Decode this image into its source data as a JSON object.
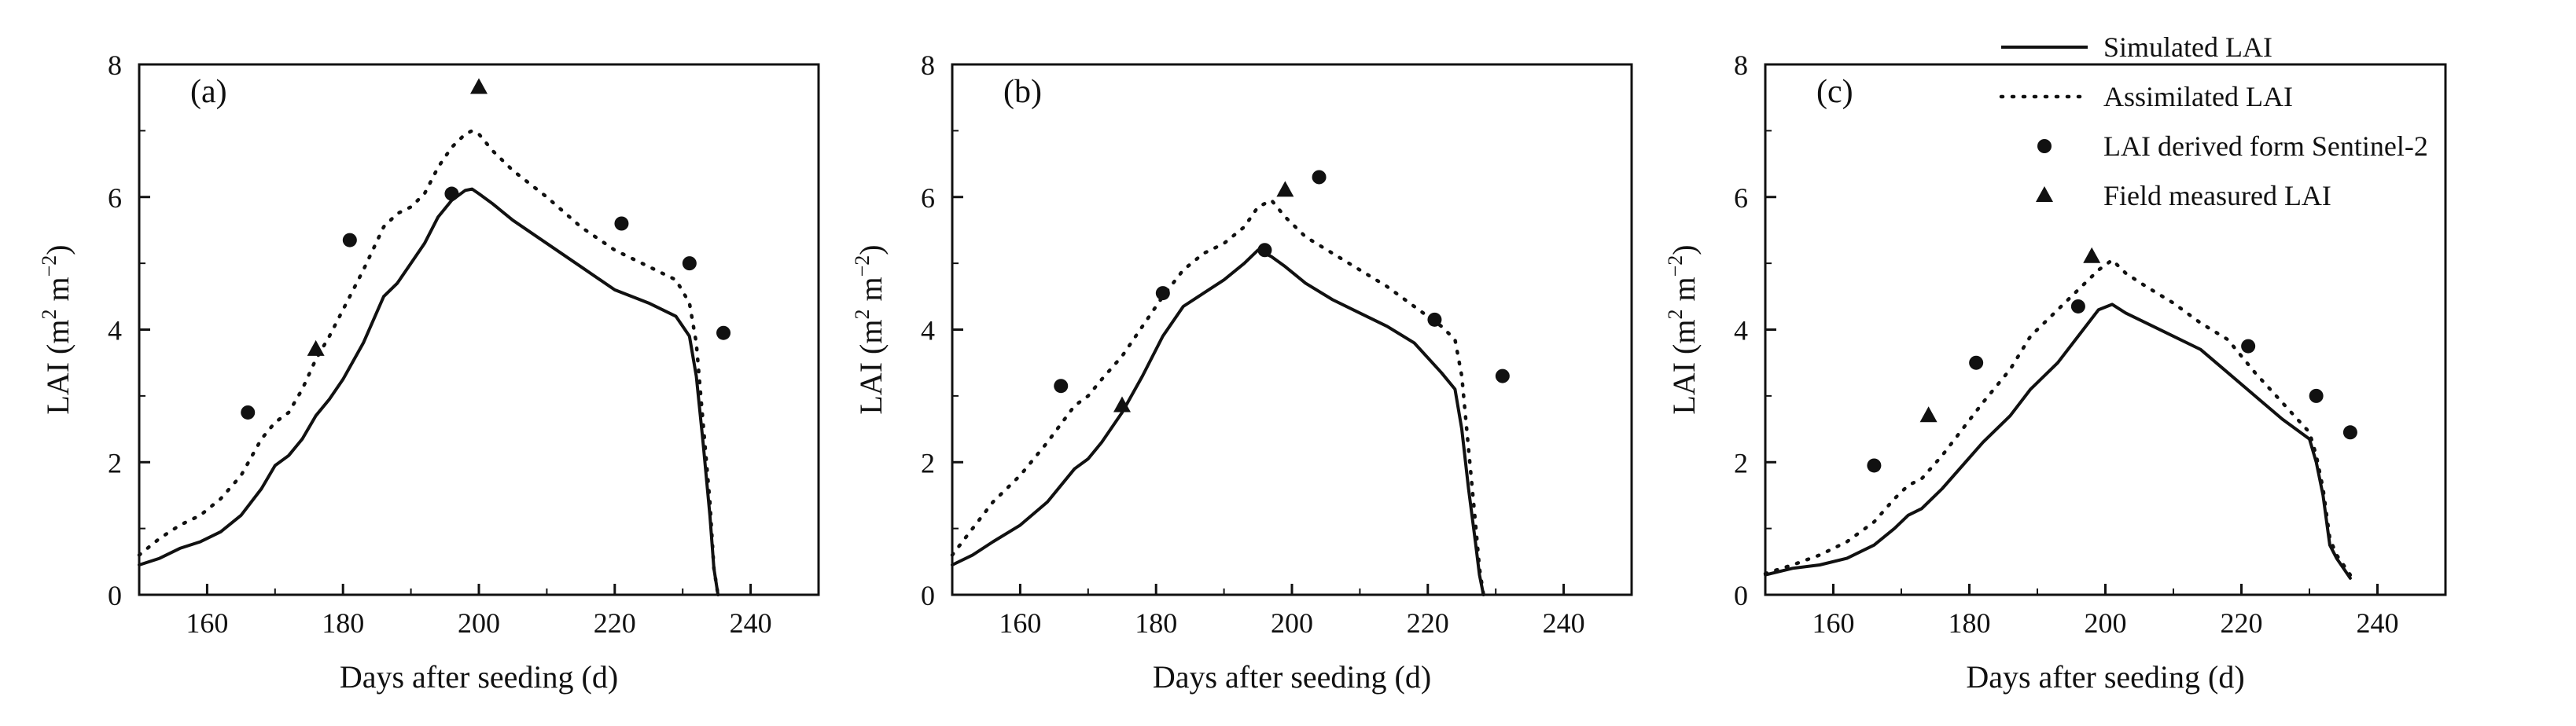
{
  "chart_data": [
    {
      "type": "line",
      "panel_label": "(a)",
      "xlabel": "Days after seeding (d)",
      "ylabel_parts": {
        "base": "LAI (m",
        "sup1": "2",
        "mid": " m",
        "sup2": "−2",
        "end": ")"
      },
      "xlim": [
        150,
        250
      ],
      "ylim": [
        0,
        8
      ],
      "xticks": [
        160,
        180,
        200,
        220,
        240
      ],
      "yticks": [
        0,
        2,
        4,
        6,
        8
      ],
      "series": [
        {
          "name": "Simulated LAI",
          "style": "solid",
          "x": [
            150,
            153,
            156,
            159,
            162,
            165,
            168,
            170,
            172,
            174,
            176,
            178,
            180,
            183,
            186,
            188,
            190,
            192,
            194,
            196,
            198,
            199,
            200,
            202,
            205,
            210,
            215,
            220,
            225,
            229,
            231,
            232,
            233,
            234,
            234.6,
            235.2
          ],
          "y": [
            0.45,
            0.55,
            0.7,
            0.8,
            0.95,
            1.2,
            1.6,
            1.95,
            2.1,
            2.35,
            2.7,
            2.95,
            3.25,
            3.8,
            4.5,
            4.7,
            5.0,
            5.3,
            5.7,
            5.95,
            6.1,
            6.12,
            6.05,
            5.9,
            5.65,
            5.3,
            4.95,
            4.6,
            4.4,
            4.2,
            3.9,
            3.3,
            2.3,
            1.2,
            0.4,
            0.0
          ]
        },
        {
          "name": "Assimilated LAI",
          "style": "dotted",
          "x": [
            150,
            153,
            156,
            159,
            162,
            165,
            168,
            170,
            172,
            174,
            176,
            178,
            180,
            183,
            186,
            188,
            190,
            192,
            194,
            196,
            198,
            199,
            200,
            202,
            205,
            210,
            215,
            220,
            225,
            229,
            231,
            232,
            233,
            234,
            234.6,
            235.2
          ],
          "y": [
            0.6,
            0.85,
            1.05,
            1.2,
            1.45,
            1.8,
            2.35,
            2.6,
            2.75,
            3.1,
            3.55,
            3.9,
            4.3,
            4.9,
            5.55,
            5.75,
            5.85,
            6.05,
            6.45,
            6.75,
            6.95,
            7.0,
            6.95,
            6.7,
            6.4,
            6.0,
            5.55,
            5.2,
            4.95,
            4.75,
            4.4,
            3.8,
            2.6,
            1.4,
            0.4,
            0.0
          ]
        }
      ],
      "sentinel": {
        "name": "LAI derived form Sentinel-2",
        "x": [
          166,
          181,
          196,
          221,
          231,
          236
        ],
        "y": [
          2.75,
          5.35,
          6.05,
          5.6,
          5.0,
          3.95
        ]
      },
      "field": {
        "name": "Field measured LAI",
        "x": [
          176,
          200
        ],
        "y": [
          3.7,
          7.65
        ]
      }
    },
    {
      "type": "line",
      "panel_label": "(b)",
      "xlabel": "Days after seeding (d)",
      "ylabel_parts": {
        "base": "LAI (m",
        "sup1": "2",
        "mid": " m",
        "sup2": "−2",
        "end": ")"
      },
      "xlim": [
        150,
        250
      ],
      "ylim": [
        0,
        8
      ],
      "xticks": [
        160,
        180,
        200,
        220,
        240
      ],
      "yticks": [
        0,
        2,
        4,
        6,
        8
      ],
      "series": [
        {
          "name": "Simulated LAI",
          "style": "solid",
          "x": [
            150,
            153,
            156,
            160,
            164,
            168,
            170,
            172,
            175,
            178,
            181,
            184,
            187,
            190,
            193,
            195,
            197,
            199,
            202,
            206,
            210,
            214,
            218,
            222,
            224,
            225,
            226,
            227,
            227.6,
            228.2
          ],
          "y": [
            0.45,
            0.6,
            0.8,
            1.05,
            1.4,
            1.9,
            2.05,
            2.3,
            2.75,
            3.3,
            3.9,
            4.35,
            4.55,
            4.75,
            5.0,
            5.2,
            5.1,
            4.95,
            4.7,
            4.45,
            4.25,
            4.05,
            3.8,
            3.35,
            3.1,
            2.5,
            1.6,
            0.8,
            0.3,
            0.0
          ]
        },
        {
          "name": "Assimilated LAI",
          "style": "dotted",
          "x": [
            150,
            153,
            156,
            160,
            164,
            168,
            170,
            172,
            175,
            178,
            181,
            184,
            187,
            190,
            193,
            195,
            197,
            199,
            202,
            206,
            210,
            214,
            218,
            222,
            224,
            225,
            226,
            227,
            227.6,
            228.2
          ],
          "y": [
            0.6,
            1.0,
            1.4,
            1.8,
            2.3,
            2.85,
            3.0,
            3.25,
            3.6,
            4.05,
            4.5,
            4.9,
            5.15,
            5.3,
            5.55,
            5.85,
            5.95,
            5.7,
            5.4,
            5.15,
            4.9,
            4.65,
            4.35,
            4.05,
            3.85,
            3.3,
            2.2,
            1.1,
            0.4,
            0.0
          ]
        }
      ],
      "sentinel": {
        "name": "LAI derived form Sentinel-2",
        "x": [
          166,
          181,
          196,
          204,
          221,
          231
        ],
        "y": [
          3.15,
          4.55,
          5.2,
          6.3,
          4.15,
          3.3
        ]
      },
      "field": {
        "name": "Field measured LAI",
        "x": [
          175,
          199
        ],
        "y": [
          2.85,
          6.1
        ]
      }
    },
    {
      "type": "line",
      "panel_label": "(c)",
      "xlabel": "Days after seeding (d)",
      "ylabel_parts": {
        "base": "LAI (m",
        "sup1": "2",
        "mid": " m",
        "sup2": "−2",
        "end": ")"
      },
      "xlim": [
        150,
        250
      ],
      "ylim": [
        0,
        8
      ],
      "xticks": [
        160,
        180,
        200,
        220,
        240
      ],
      "yticks": [
        0,
        2,
        4,
        6,
        8
      ],
      "series": [
        {
          "name": "Simulated LAI",
          "style": "solid",
          "x": [
            150,
            154,
            158,
            162,
            166,
            169,
            171,
            173,
            176,
            179,
            182,
            186,
            189,
            193,
            196,
            199,
            201,
            203,
            206,
            210,
            214,
            218,
            222,
            226,
            230,
            231,
            232,
            233,
            234,
            235,
            236
          ],
          "y": [
            0.3,
            0.4,
            0.45,
            0.55,
            0.75,
            1.0,
            1.2,
            1.3,
            1.6,
            1.95,
            2.3,
            2.7,
            3.1,
            3.5,
            3.9,
            4.3,
            4.38,
            4.25,
            4.1,
            3.9,
            3.7,
            3.35,
            3.0,
            2.65,
            2.35,
            2.0,
            1.5,
            0.75,
            0.55,
            0.4,
            0.25
          ]
        },
        {
          "name": "Assimilated LAI",
          "style": "dotted",
          "x": [
            150,
            154,
            158,
            162,
            166,
            169,
            171,
            173,
            176,
            179,
            182,
            186,
            189,
            193,
            196,
            199,
            201,
            203,
            206,
            210,
            214,
            218,
            222,
            226,
            230,
            231,
            232,
            233,
            234,
            235,
            236
          ],
          "y": [
            0.32,
            0.45,
            0.6,
            0.8,
            1.1,
            1.45,
            1.65,
            1.75,
            2.1,
            2.5,
            2.9,
            3.4,
            3.9,
            4.3,
            4.6,
            4.9,
            5.05,
            4.85,
            4.65,
            4.4,
            4.1,
            3.85,
            3.35,
            2.9,
            2.45,
            2.1,
            1.6,
            0.85,
            0.6,
            0.45,
            0.3
          ]
        }
      ],
      "sentinel": {
        "name": "LAI derived form Sentinel-2",
        "x": [
          166,
          181,
          196,
          221,
          231,
          236
        ],
        "y": [
          1.95,
          3.5,
          4.35,
          3.75,
          3.0,
          2.45
        ]
      },
      "field": {
        "name": "Field measured LAI",
        "x": [
          174,
          198
        ],
        "y": [
          2.7,
          5.1
        ]
      }
    }
  ],
  "legend": [
    {
      "label": "Simulated LAI",
      "kind": "solid"
    },
    {
      "label": "Assimilated LAI",
      "kind": "dotted"
    },
    {
      "label": "LAI derived form Sentinel-2",
      "kind": "circle"
    },
    {
      "label": "Field measured LAI",
      "kind": "triangle"
    }
  ],
  "colors": {
    "ink": "#111111",
    "background": "#ffffff"
  }
}
